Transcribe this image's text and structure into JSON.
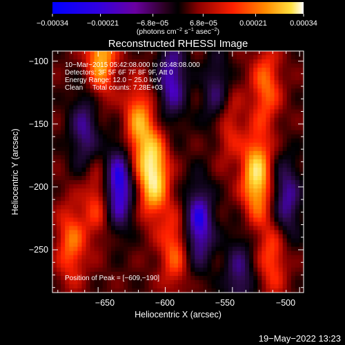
{
  "colorbar": {
    "ticks": [
      "−0.00034",
      "−0.00021",
      "−6.8e−05",
      "6.8e−05",
      "0.00021",
      "0.00034"
    ],
    "tick_values": [
      -0.00034,
      -0.00021,
      -6.8e-05,
      6.8e-05,
      0.00021,
      0.00034
    ],
    "range": [
      -0.00034,
      0.00034
    ],
    "units_main": "(photons cm",
    "units_sup1": "−2",
    "units_mid": " s",
    "units_sup2": "−1",
    "units_end": " asec",
    "units_sup3": "−2",
    "units_close": ")"
  },
  "annotations": {
    "line1": "10−Mar−2015 05:42:08.000 to 05:48:08.000",
    "line2": "Detectors: 3F 5F 6F 7F 8F 9F, Att 0",
    "line3": "Energy Range: 12.0 − 25.0 keV",
    "line4": "Clean     Total counts: 7.28E+03",
    "peak": "Position of Peak = [−609,−190]"
  },
  "footer": {
    "timestamp": "19−May−2022 13:23"
  },
  "chart_data": {
    "type": "heatmap",
    "title": "Reconstructed RHESSI Image",
    "xlabel": "Heliocentric X (arcsec)",
    "ylabel": "Heliocentric Y (arcsec)",
    "xlim": [
      -684,
      -497
    ],
    "ylim": [
      -284,
      -92
    ],
    "x_ticks": [
      -650,
      -600,
      -550,
      -500
    ],
    "x_tick_labels": [
      "−650",
      "−600",
      "−550",
      "−500"
    ],
    "y_ticks": [
      -100,
      -150,
      -200,
      -250
    ],
    "y_tick_labels": [
      "−100",
      "−150",
      "−200",
      "−250"
    ],
    "colormap": [
      "#0000ff",
      "#4a00c8",
      "#2d0a4a",
      "#000000",
      "#8b0000",
      "#ff2000",
      "#ff8c00",
      "#ffe040",
      "#ffffff"
    ],
    "peak_position": [
      -609,
      -190
    ],
    "sources": [
      {
        "x": -609,
        "y": -190,
        "peak": 0.00034
      },
      {
        "x": -532,
        "y": -192,
        "peak": 0.00031
      },
      {
        "x": -648,
        "y": -95,
        "peak": 0.00026
      },
      {
        "x": -620,
        "y": -150,
        "peak": 0.00022
      },
      {
        "x": -555,
        "y": -145,
        "peak": 0.00021
      },
      {
        "x": -670,
        "y": -245,
        "peak": 0.00018
      },
      {
        "x": -650,
        "y": -210,
        "peak": 0.00015
      },
      {
        "x": -593,
        "y": -250,
        "peak": 0.00017
      },
      {
        "x": -520,
        "y": -255,
        "peak": 0.00016
      },
      {
        "x": -525,
        "y": -120,
        "peak": 0.00018
      }
    ],
    "negative_sources": [
      {
        "x": -635,
        "y": -200,
        "peak": -0.0003
      },
      {
        "x": -575,
        "y": -230,
        "peak": -0.00026
      },
      {
        "x": -560,
        "y": -130,
        "peak": -0.00024
      },
      {
        "x": -595,
        "y": -115,
        "peak": -0.00022
      },
      {
        "x": -510,
        "y": -210,
        "peak": -0.0002
      },
      {
        "x": -660,
        "y": -155,
        "peak": -0.00018
      },
      {
        "x": -545,
        "y": -270,
        "peak": -0.00016
      }
    ]
  }
}
